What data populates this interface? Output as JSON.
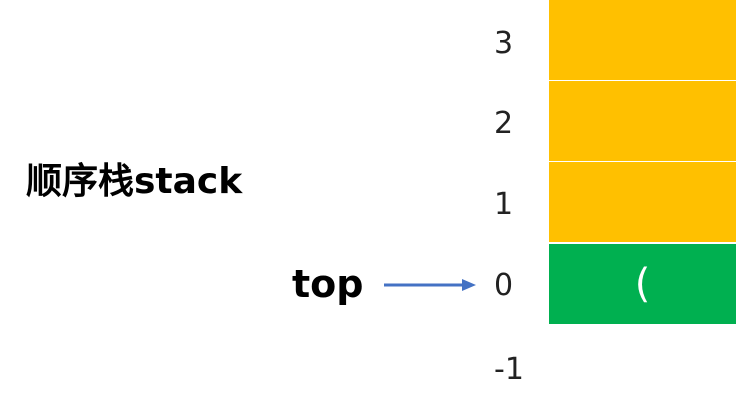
{
  "title": "顺序栈stack",
  "pointer": {
    "label": "top",
    "target_index": "0",
    "arrow_color": "#4472C4"
  },
  "indices": [
    "3",
    "2",
    "1",
    "0",
    "-1"
  ],
  "cells": [
    {
      "index": "3",
      "value": "",
      "color": "#FFC000"
    },
    {
      "index": "2",
      "value": "",
      "color": "#FFC000"
    },
    {
      "index": "1",
      "value": "",
      "color": "#FFC000"
    },
    {
      "index": "0",
      "value": "(",
      "color": "#00B050"
    }
  ]
}
